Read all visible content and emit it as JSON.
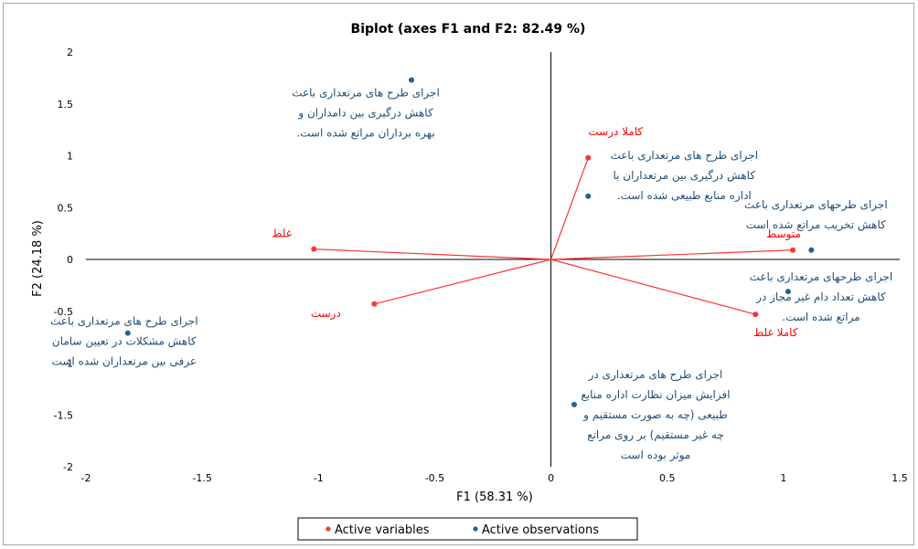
{
  "chart_data": {
    "type": "scatter",
    "title": "Biplot (axes F1 and F2: 82.49 %)",
    "xlabel": "F1 (58.31 %)",
    "ylabel": "F2 (24.18 %)",
    "xlim": [
      -2,
      1.5
    ],
    "ylim": [
      -2,
      2
    ],
    "xticks": [
      -2,
      -1.5,
      -1,
      -0.5,
      0,
      0.5,
      1,
      1.5
    ],
    "yticks": [
      -2,
      -1.5,
      -1,
      -0.5,
      0,
      0.5,
      1,
      1.5,
      2
    ],
    "xtick_labels": [
      "-2",
      "-1.5",
      "-1",
      "-0.5",
      "0",
      "0.5",
      "1",
      "1.5"
    ],
    "ytick_labels": [
      "-2",
      "-1.5",
      "-1",
      "-0.5",
      "0",
      "0.5",
      "1",
      "1.5",
      "2"
    ],
    "grid": false,
    "zero_lines": true,
    "legend": {
      "position": "bottom",
      "entries": [
        {
          "name": "Active variables",
          "color": "#ff3333"
        },
        {
          "name": "Active observations",
          "color": "#1f6591"
        }
      ]
    },
    "colors": {
      "variables": "#ff3333",
      "observations": "#1f6591",
      "observation_text": "#1f4e79",
      "variable_text": "#ff0000",
      "axes": "#000000",
      "frame": "#a6a6a6"
    },
    "variables": [
      {
        "label": "کاملا درست",
        "x": 0.16,
        "y": 0.98
      },
      {
        "label": "متوسط",
        "x": 1.04,
        "y": 0.09
      },
      {
        "label": "غلط",
        "x": -1.02,
        "y": 0.1
      },
      {
        "label": "درست",
        "x": -0.76,
        "y": -0.43
      },
      {
        "label": "کاملا غلط",
        "x": 0.88,
        "y": -0.53
      }
    ],
    "observations": [
      {
        "label_lines": [
          "اجرای طرح های مرتعداری باعث",
          "کاهش درگیری بین دامداران و",
          "بهره برداران مراتع شده است."
        ],
        "x": -0.6,
        "y": 1.73
      },
      {
        "label_lines": [
          "اجرای طرح های مرتعداری باعث",
          "کاهش درگیری بین مرتعداران با",
          "اداره منابع طبیعی شده است."
        ],
        "x": 0.16,
        "y": 0.61
      },
      {
        "label_lines": [
          "اجرای طرحهای مرتعداری باعث",
          "کاهش تخریب مراتع شده است"
        ],
        "x": 1.12,
        "y": 0.09
      },
      {
        "label_lines": [
          "اجرای طرحهای مرتعداری باعث",
          "کاهش تعداد دام غیر مجاز در",
          "مراتع شده است."
        ],
        "x": 1.02,
        "y": -0.31
      },
      {
        "label_lines": [
          "اجرای طرح های مرتعداری باعث",
          "کاهش مشکلات در تعیین سامان",
          "عرفی بین مرتعداران شده است"
        ],
        "x": -1.82,
        "y": -0.71
      },
      {
        "label_lines": [
          "اجرای طرح های مرتعداری در",
          "افزایش میزان نظارت اداره منابع",
          "طبیعی (چه به صورت مستقیم و",
          "چه غیر مستقیم) بر روی مراتع",
          "موثر بوده است"
        ],
        "x": 0.1,
        "y": -1.4
      }
    ]
  }
}
